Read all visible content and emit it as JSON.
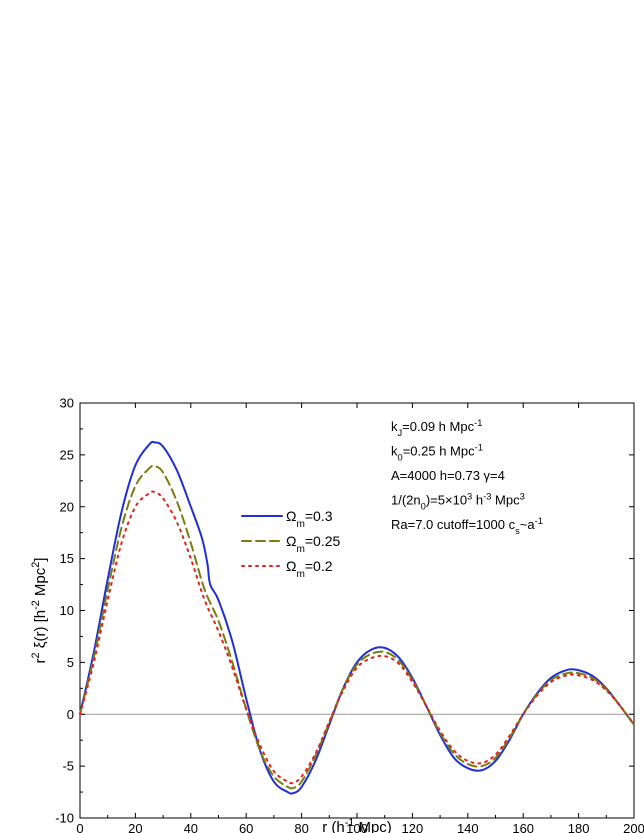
{
  "chart_data": {
    "type": "line",
    "xlabel": "r (h-1 Mpc)",
    "xlabel_parts": {
      "base": "r (h",
      "sup": "-1",
      "tail": " Mpc)"
    },
    "ylabel": "r2 ξ(r)  [h-2 Mpc2]",
    "ylabel_parts": {
      "r": "r",
      "r_sup": "2",
      "xi": " ξ(r)  [h",
      "h_sup": "-2",
      "mpc": " Mpc",
      "mpc_sup": "2",
      "close": "]"
    },
    "xlim": [
      0,
      200
    ],
    "ylim": [
      -10,
      30
    ],
    "xticks": [
      0,
      20,
      40,
      60,
      80,
      100,
      120,
      140,
      160,
      180,
      200
    ],
    "yticks": [
      -10,
      -5,
      0,
      5,
      10,
      15,
      20,
      25,
      30
    ],
    "xtick_labels": [
      "0",
      "20",
      "40",
      "60",
      "80",
      "100",
      "120",
      "140",
      "160",
      "180",
      "200"
    ],
    "ytick_labels": [
      "-10",
      "-5",
      "0",
      "5",
      "10",
      "15",
      "20",
      "25",
      "30"
    ],
    "zero_line": true,
    "legend_position": "center-left",
    "annotations": [
      {
        "text": "kJ=0.09 h Mpc-1",
        "parts": [
          [
            "k",
            ""
          ],
          [
            "J",
            "sub"
          ],
          [
            "=0.09 h Mpc",
            ""
          ],
          [
            "-1",
            "sup"
          ]
        ]
      },
      {
        "text": "k0=0.25 h Mpc-1",
        "parts": [
          [
            "k",
            ""
          ],
          [
            "0",
            "sub"
          ],
          [
            "=0.25 h Mpc",
            ""
          ],
          [
            "-1",
            "sup"
          ]
        ]
      },
      {
        "text": "A=4000  h=0.73   γ=4",
        "parts": [
          [
            "A=4000  h=0.73   γ=4",
            ""
          ]
        ]
      },
      {
        "text": "1/(2n0)=5×103 h-3 Mpc3",
        "parts": [
          [
            "1/(2n",
            ""
          ],
          [
            "0",
            "sub"
          ],
          [
            ")=5×10",
            ""
          ],
          [
            "3",
            "sup"
          ],
          [
            " h",
            ""
          ],
          [
            "-3",
            "sup"
          ],
          [
            " Mpc",
            ""
          ],
          [
            "3",
            "sup"
          ]
        ]
      },
      {
        "text": "Ra=7.0   cutoff=1000    cs~a-1",
        "parts": [
          [
            "Ra=7.0   cutoff=1000    c",
            ""
          ],
          [
            "s",
            "sub"
          ],
          [
            "~a",
            ""
          ],
          [
            "-1",
            "sup"
          ]
        ]
      }
    ],
    "series": [
      {
        "name": "Ωm=0.3",
        "name_parts": {
          "base": "Ω",
          "sub": "m",
          "tail": "=0.3"
        },
        "color": "#1f2fd6",
        "dash": "solid",
        "x": [
          0,
          5,
          10,
          15,
          20,
          25,
          27,
          30,
          35,
          40,
          44,
          46,
          47,
          50,
          55,
          60,
          65,
          70,
          75,
          77,
          80,
          85,
          90,
          95,
          100,
          105,
          110,
          115,
          120,
          125,
          130,
          135,
          140,
          145,
          150,
          155,
          160,
          165,
          170,
          175,
          179,
          185,
          190,
          195,
          200
        ],
        "y": [
          0,
          6,
          13,
          19.5,
          24,
          26,
          26.2,
          25.8,
          23.5,
          20,
          17,
          14.5,
          12.5,
          11,
          7,
          1.5,
          -3.5,
          -6.5,
          -7.5,
          -7.6,
          -7,
          -4.5,
          -1,
          2.5,
          5,
          6.2,
          6.4,
          5.5,
          3.5,
          0.8,
          -2,
          -4.2,
          -5.2,
          -5.4,
          -4.5,
          -2.5,
          0,
          2,
          3.5,
          4.2,
          4.3,
          3.7,
          2.5,
          0.8,
          -1
        ]
      },
      {
        "name": "Ωm=0.25",
        "name_parts": {
          "base": "Ω",
          "sub": "m",
          "tail": "=0.25"
        },
        "color": "#7a7d0f",
        "dash": "dashed",
        "x": [
          0,
          5,
          10,
          15,
          20,
          25,
          27,
          30,
          35,
          40,
          45,
          50,
          55,
          60,
          65,
          70,
          75,
          77,
          80,
          85,
          90,
          95,
          100,
          105,
          110,
          115,
          120,
          125,
          130,
          135,
          140,
          145,
          150,
          155,
          160,
          165,
          170,
          175,
          179,
          185,
          190,
          195,
          200
        ],
        "y": [
          0,
          5.5,
          12,
          18,
          22,
          23.7,
          23.9,
          23.3,
          20.5,
          16.5,
          12,
          9,
          5,
          0.5,
          -3.5,
          -6,
          -7,
          -7.1,
          -6.5,
          -4,
          -0.8,
          2.5,
          4.8,
          5.8,
          6,
          5.2,
          3.3,
          0.8,
          -1.8,
          -3.8,
          -4.8,
          -5,
          -4.2,
          -2.3,
          0,
          1.9,
          3.3,
          3.9,
          4,
          3.5,
          2.4,
          0.8,
          -1
        ]
      },
      {
        "name": "Ωm=0.2",
        "name_parts": {
          "base": "Ω",
          "sub": "m",
          "tail": "=0.2"
        },
        "color": "#e0241c",
        "dash": "dotted",
        "x": [
          0,
          5,
          10,
          15,
          20,
          25,
          27,
          30,
          35,
          40,
          45,
          50,
          55,
          60,
          65,
          70,
          75,
          77,
          80,
          85,
          90,
          95,
          100,
          105,
          110,
          115,
          120,
          125,
          130,
          135,
          140,
          145,
          150,
          155,
          160,
          165,
          170,
          175,
          179,
          185,
          190,
          195,
          200
        ],
        "y": [
          0,
          5,
          11,
          16.5,
          20,
          21.3,
          21.4,
          20.8,
          18.5,
          15,
          11,
          8,
          4.5,
          0.5,
          -3,
          -5.5,
          -6.5,
          -6.6,
          -6,
          -3.8,
          -0.7,
          2.3,
          4.5,
          5.4,
          5.6,
          4.9,
          3.1,
          0.8,
          -1.6,
          -3.5,
          -4.5,
          -4.7,
          -3.9,
          -2.1,
          0,
          1.8,
          3.1,
          3.7,
          3.8,
          3.3,
          2.3,
          0.8,
          -1
        ]
      }
    ]
  }
}
